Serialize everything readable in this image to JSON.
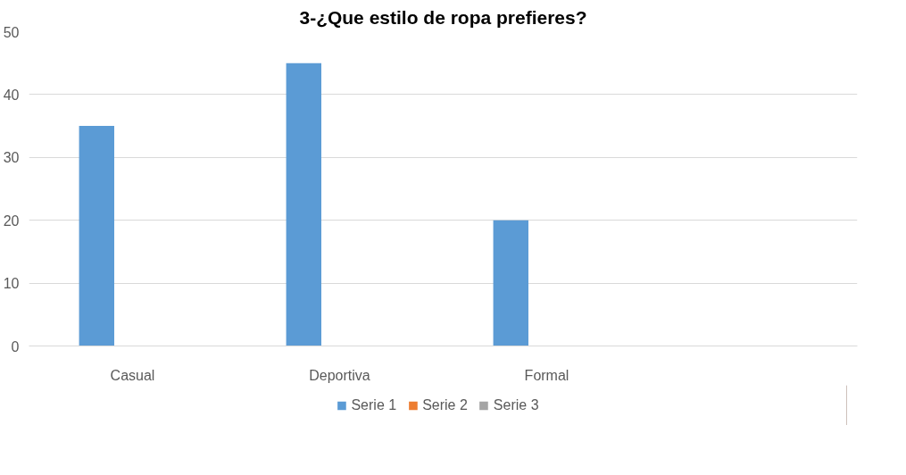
{
  "chart_data": {
    "type": "bar",
    "title": "3-¿Que estilo de ropa prefieres?",
    "categories": [
      "Casual",
      "Deportiva",
      "Formal",
      null
    ],
    "series": [
      {
        "name": "Serie 1",
        "color": "#5b9bd5",
        "values": [
          35,
          45,
          20,
          null
        ]
      },
      {
        "name": "Serie 2",
        "color": "#ed7d31",
        "values": [
          null,
          null,
          null,
          null
        ]
      },
      {
        "name": "Serie 3",
        "color": "#a5a5a5",
        "values": [
          null,
          null,
          null,
          null
        ]
      }
    ],
    "ylim": [
      0,
      50
    ],
    "yticks": [
      0,
      10,
      20,
      30,
      40,
      50
    ],
    "grid": "y",
    "legend": "bottom"
  }
}
